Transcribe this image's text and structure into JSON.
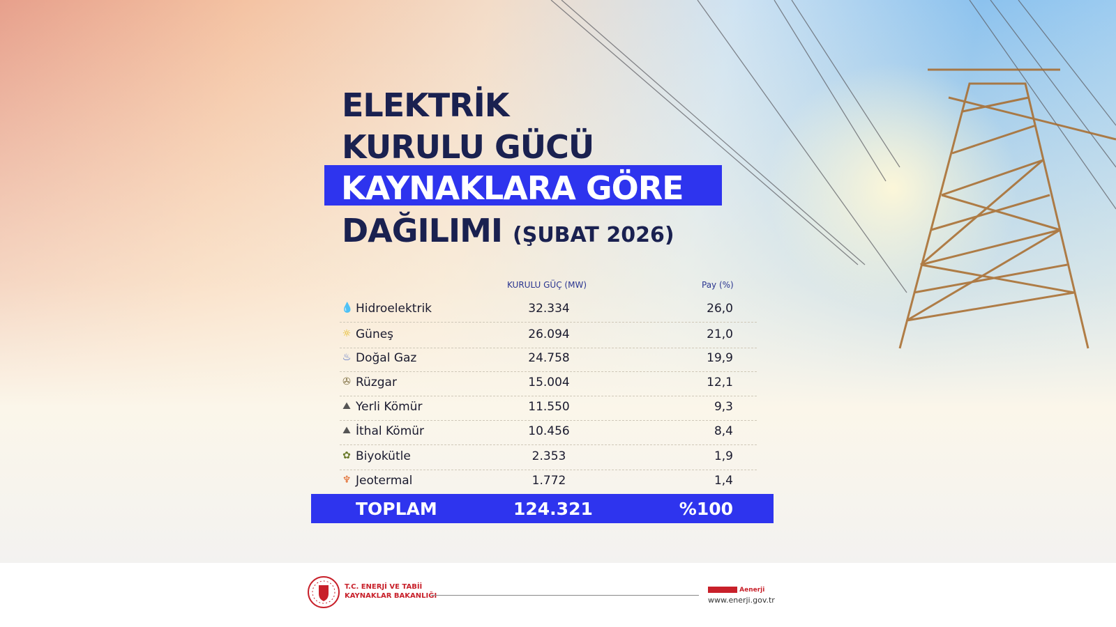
{
  "title": {
    "line1": "ELEKTRİK",
    "line2": "KURULU GÜCÜ",
    "line3": "KAYNAKLARA GÖRE",
    "line4": "DAĞILIMI",
    "period": "(ŞUBAT 2026)"
  },
  "colors": {
    "accent": "#2e34ee",
    "title": "#1a2150"
  },
  "chart_data": {
    "type": "table",
    "columns": [
      "",
      "KURULU GÜÇ (MW)",
      "Pay (%)"
    ],
    "rows": [
      {
        "source": "Hidroelektrik",
        "icon": "water-drop-icon",
        "mw": "32.334",
        "share": "26,0"
      },
      {
        "source": "Güneş",
        "icon": "sun-icon",
        "mw": "26.094",
        "share": "21,0"
      },
      {
        "source": "Doğal Gaz",
        "icon": "flame-icon",
        "mw": "24.758",
        "share": "19,9"
      },
      {
        "source": "Rüzgar",
        "icon": "wind-turbine-icon",
        "mw": "15.004",
        "share": "12,1"
      },
      {
        "source": "Yerli Kömür",
        "icon": "coal-icon",
        "mw": "11.550",
        "share": "9,3"
      },
      {
        "source": "İthal Kömür",
        "icon": "coal-icon",
        "mw": "10.456",
        "share": "8,4"
      },
      {
        "source": "Biyokütle",
        "icon": "plant-icon",
        "mw": "2.353",
        "share": "1,9"
      },
      {
        "source": "Jeotermal",
        "icon": "geothermal-icon",
        "mw": "1.772",
        "share": "1,4"
      }
    ],
    "total": {
      "label": "TOPLAM",
      "mw": "124.321",
      "share": "%100"
    }
  },
  "footer": {
    "ministry_line1": "T.C. ENERJİ VE TABİİ",
    "ministry_line2": "KAYNAKLAR BAKANLIĞI",
    "social_handle": "Aenerji",
    "website": "www.enerji.gov.tr"
  }
}
